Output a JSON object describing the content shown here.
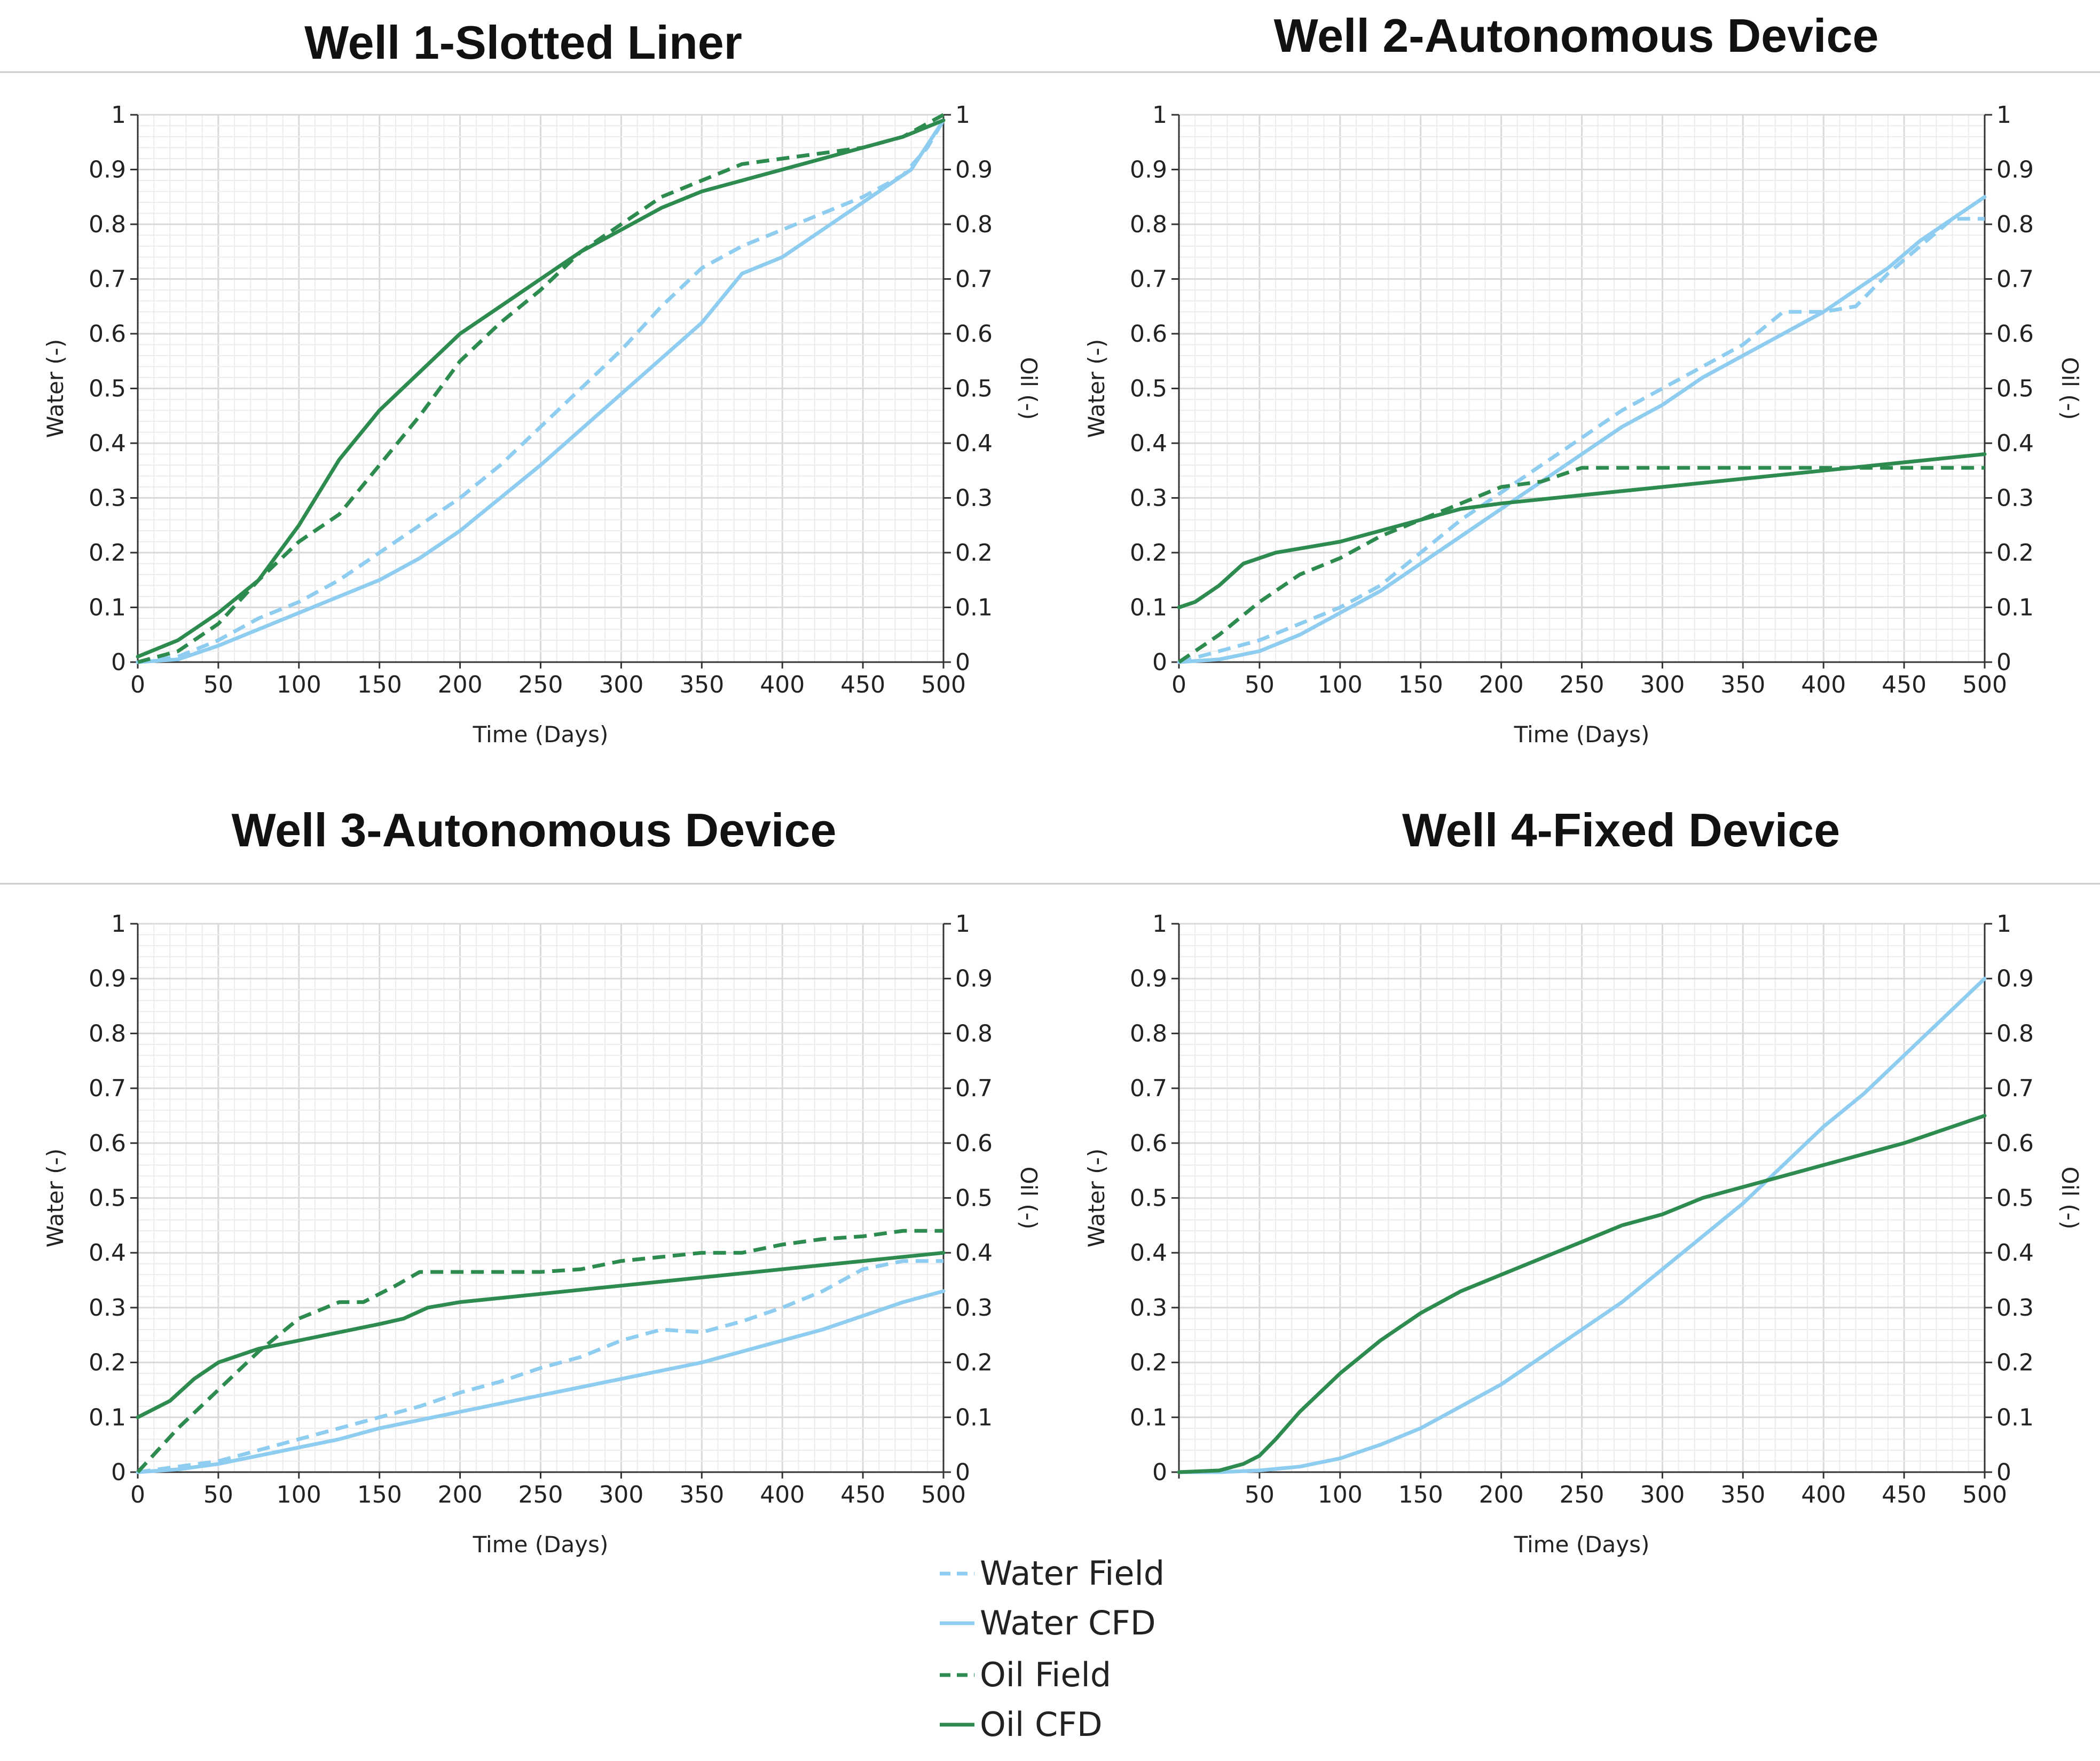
{
  "colors": {
    "water": "#8ecdf0",
    "oil": "#2e8b4f"
  },
  "legend": [
    {
      "label": "Water Field",
      "series": "water",
      "dashed": true
    },
    {
      "label": "Water CFD",
      "series": "water",
      "dashed": false
    },
    {
      "label": "Oil Field",
      "series": "oil",
      "dashed": true
    },
    {
      "label": "Oil CFD",
      "series": "oil",
      "dashed": false
    }
  ],
  "chart_data": [
    {
      "type": "line",
      "title": "Well 1-Slotted Liner",
      "xlabel": "Time (Days)",
      "ylabel_left": "Water (-)",
      "ylabel_right": "Oil (-)",
      "xlim": [
        0,
        500
      ],
      "ylim": [
        0,
        1
      ],
      "xticks": [
        "0",
        "50",
        "100",
        "150",
        "200",
        "250",
        "300",
        "350",
        "400",
        "450",
        "500"
      ],
      "yticks": [
        "0",
        "0.1",
        "0.2",
        "0.3",
        "0.4",
        "0.5",
        "0.6",
        "0.7",
        "0.8",
        "0.9",
        "1"
      ],
      "series": [
        {
          "name": "Water Field",
          "kind": "water",
          "dashed": true,
          "x": [
            0,
            25,
            50,
            75,
            100,
            125,
            150,
            175,
            200,
            225,
            250,
            275,
            300,
            325,
            350,
            375,
            400,
            425,
            450,
            475,
            490,
            500
          ],
          "y": [
            0,
            0.01,
            0.04,
            0.08,
            0.11,
            0.15,
            0.2,
            0.25,
            0.3,
            0.36,
            0.43,
            0.5,
            0.57,
            0.65,
            0.72,
            0.76,
            0.79,
            0.82,
            0.85,
            0.89,
            0.94,
            0.99
          ]
        },
        {
          "name": "Water CFD",
          "kind": "water",
          "dashed": false,
          "x": [
            0,
            25,
            50,
            75,
            100,
            125,
            150,
            175,
            200,
            250,
            300,
            350,
            375,
            400,
            450,
            480,
            500
          ],
          "y": [
            0,
            0.005,
            0.03,
            0.06,
            0.09,
            0.12,
            0.15,
            0.19,
            0.24,
            0.36,
            0.49,
            0.62,
            0.71,
            0.74,
            0.84,
            0.9,
            0.99
          ]
        },
        {
          "name": "Oil Field",
          "kind": "oil",
          "dashed": true,
          "x": [
            0,
            25,
            50,
            75,
            100,
            125,
            150,
            175,
            200,
            225,
            250,
            275,
            300,
            325,
            350,
            375,
            400,
            425,
            450,
            475,
            500
          ],
          "y": [
            0,
            0.02,
            0.07,
            0.15,
            0.22,
            0.27,
            0.36,
            0.45,
            0.55,
            0.62,
            0.68,
            0.75,
            0.8,
            0.85,
            0.88,
            0.91,
            0.92,
            0.93,
            0.94,
            0.96,
            1.0
          ]
        },
        {
          "name": "Oil CFD",
          "kind": "oil",
          "dashed": false,
          "x": [
            0,
            25,
            50,
            75,
            100,
            125,
            150,
            175,
            200,
            225,
            250,
            275,
            300,
            325,
            350,
            375,
            400,
            425,
            450,
            475,
            500
          ],
          "y": [
            0.01,
            0.04,
            0.09,
            0.15,
            0.25,
            0.37,
            0.46,
            0.53,
            0.6,
            0.65,
            0.7,
            0.75,
            0.79,
            0.83,
            0.86,
            0.88,
            0.9,
            0.92,
            0.94,
            0.96,
            0.99
          ]
        }
      ]
    },
    {
      "type": "line",
      "title": "Well 2-Autonomous Device",
      "xlabel": "Time (Days)",
      "ylabel_left": "Water (-)",
      "ylabel_right": "Oil (-)",
      "xlim": [
        0,
        500
      ],
      "ylim": [
        0,
        1
      ],
      "xticks": [
        "0",
        "50",
        "100",
        "150",
        "200",
        "250",
        "300",
        "350",
        "400",
        "450",
        "500"
      ],
      "yticks": [
        "0",
        "0.1",
        "0.2",
        "0.3",
        "0.4",
        "0.5",
        "0.6",
        "0.7",
        "0.8",
        "0.9",
        "1"
      ],
      "series": [
        {
          "name": "Water Field",
          "kind": "water",
          "dashed": true,
          "x": [
            0,
            25,
            50,
            75,
            100,
            125,
            150,
            175,
            200,
            225,
            250,
            275,
            300,
            325,
            350,
            375,
            400,
            420,
            440,
            460,
            480,
            500
          ],
          "y": [
            0,
            0.02,
            0.04,
            0.07,
            0.1,
            0.14,
            0.2,
            0.26,
            0.31,
            0.36,
            0.41,
            0.46,
            0.5,
            0.54,
            0.58,
            0.64,
            0.64,
            0.65,
            0.71,
            0.76,
            0.81,
            0.81
          ]
        },
        {
          "name": "Water CFD",
          "kind": "water",
          "dashed": false,
          "x": [
            0,
            25,
            50,
            75,
            100,
            125,
            150,
            175,
            200,
            225,
            250,
            275,
            300,
            325,
            350,
            375,
            400,
            420,
            440,
            460,
            480,
            500
          ],
          "y": [
            0,
            0.005,
            0.02,
            0.05,
            0.09,
            0.13,
            0.18,
            0.23,
            0.28,
            0.33,
            0.38,
            0.43,
            0.47,
            0.52,
            0.56,
            0.6,
            0.64,
            0.68,
            0.72,
            0.77,
            0.81,
            0.85
          ]
        },
        {
          "name": "Oil Field",
          "kind": "oil",
          "dashed": true,
          "x": [
            0,
            25,
            50,
            75,
            100,
            125,
            150,
            175,
            200,
            225,
            250,
            275,
            300,
            350,
            400,
            450,
            500
          ],
          "y": [
            0,
            0.05,
            0.11,
            0.16,
            0.19,
            0.23,
            0.26,
            0.29,
            0.32,
            0.33,
            0.355,
            0.355,
            0.355,
            0.355,
            0.355,
            0.355,
            0.355
          ]
        },
        {
          "name": "Oil CFD",
          "kind": "oil",
          "dashed": false,
          "x": [
            0,
            10,
            25,
            40,
            60,
            80,
            100,
            125,
            150,
            175,
            200,
            250,
            300,
            350,
            400,
            450,
            500
          ],
          "y": [
            0.1,
            0.11,
            0.14,
            0.18,
            0.2,
            0.21,
            0.22,
            0.24,
            0.26,
            0.28,
            0.29,
            0.305,
            0.32,
            0.335,
            0.35,
            0.365,
            0.38
          ]
        }
      ]
    },
    {
      "type": "line",
      "title": "Well 3-Autonomous Device",
      "xlabel": "Time (Days)",
      "ylabel_left": "Water (-)",
      "ylabel_right": "Oil (-)",
      "xlim": [
        0,
        500
      ],
      "ylim": [
        0,
        1
      ],
      "xticks": [
        "0",
        "50",
        "100",
        "150",
        "200",
        "250",
        "300",
        "350",
        "400",
        "450",
        "500"
      ],
      "yticks": [
        "0",
        "0.1",
        "0.2",
        "0.3",
        "0.4",
        "0.5",
        "0.6",
        "0.7",
        "0.8",
        "0.9",
        "1"
      ],
      "series": [
        {
          "name": "Water Field",
          "kind": "water",
          "dashed": true,
          "x": [
            0,
            25,
            50,
            75,
            100,
            125,
            150,
            175,
            200,
            225,
            250,
            275,
            300,
            325,
            350,
            375,
            400,
            425,
            450,
            475,
            500
          ],
          "y": [
            0,
            0.01,
            0.02,
            0.04,
            0.06,
            0.08,
            0.1,
            0.12,
            0.145,
            0.165,
            0.19,
            0.21,
            0.24,
            0.26,
            0.255,
            0.275,
            0.3,
            0.33,
            0.37,
            0.385,
            0.385
          ]
        },
        {
          "name": "Water CFD",
          "kind": "water",
          "dashed": false,
          "x": [
            0,
            25,
            50,
            75,
            100,
            125,
            150,
            175,
            200,
            225,
            250,
            275,
            300,
            325,
            350,
            375,
            400,
            425,
            450,
            475,
            500
          ],
          "y": [
            0,
            0.005,
            0.015,
            0.03,
            0.045,
            0.06,
            0.08,
            0.095,
            0.11,
            0.125,
            0.14,
            0.155,
            0.17,
            0.185,
            0.2,
            0.22,
            0.24,
            0.26,
            0.285,
            0.31,
            0.33
          ]
        },
        {
          "name": "Oil Field",
          "kind": "oil",
          "dashed": true,
          "x": [
            0,
            25,
            50,
            75,
            100,
            125,
            140,
            160,
            175,
            200,
            250,
            275,
            300,
            350,
            375,
            400,
            425,
            450,
            475,
            500
          ],
          "y": [
            0,
            0.08,
            0.15,
            0.22,
            0.28,
            0.31,
            0.31,
            0.34,
            0.365,
            0.365,
            0.365,
            0.37,
            0.385,
            0.4,
            0.4,
            0.415,
            0.425,
            0.43,
            0.44,
            0.44
          ]
        },
        {
          "name": "Oil CFD",
          "kind": "oil",
          "dashed": false,
          "x": [
            0,
            20,
            35,
            50,
            75,
            100,
            125,
            150,
            165,
            180,
            200,
            250,
            300,
            350,
            400,
            450,
            500
          ],
          "y": [
            0.1,
            0.13,
            0.17,
            0.2,
            0.225,
            0.24,
            0.255,
            0.27,
            0.28,
            0.3,
            0.31,
            0.325,
            0.34,
            0.355,
            0.37,
            0.385,
            0.4
          ]
        }
      ]
    },
    {
      "type": "line",
      "title": "Well 4-Fixed Device",
      "xlabel": "Time (Days)",
      "ylabel_left": "Water (-)",
      "ylabel_right": "Oil (-)",
      "xlim": [
        0,
        500
      ],
      "ylim": [
        0,
        1
      ],
      "xticks": [
        "",
        "50",
        "100",
        "150",
        "200",
        "250",
        "300",
        "350",
        "400",
        "450",
        "500"
      ],
      "yticks": [
        "0",
        "0.1",
        "0.2",
        "0.3",
        "0.4",
        "0.5",
        "0.6",
        "0.7",
        "0.8",
        "0.9",
        "1"
      ],
      "series": [
        {
          "name": "Water CFD",
          "kind": "water",
          "dashed": false,
          "x": [
            0,
            25,
            50,
            75,
            100,
            125,
            150,
            175,
            200,
            225,
            250,
            275,
            300,
            325,
            350,
            375,
            400,
            425,
            450,
            475,
            500
          ],
          "y": [
            0,
            0,
            0.003,
            0.01,
            0.025,
            0.05,
            0.08,
            0.12,
            0.16,
            0.21,
            0.26,
            0.31,
            0.37,
            0.43,
            0.49,
            0.56,
            0.63,
            0.69,
            0.76,
            0.83,
            0.9
          ]
        },
        {
          "name": "Oil CFD",
          "kind": "oil",
          "dashed": false,
          "x": [
            0,
            25,
            40,
            50,
            60,
            75,
            100,
            125,
            150,
            175,
            200,
            225,
            250,
            275,
            300,
            325,
            350,
            400,
            450,
            500
          ],
          "y": [
            0,
            0.003,
            0.015,
            0.03,
            0.06,
            0.11,
            0.18,
            0.24,
            0.29,
            0.33,
            0.36,
            0.39,
            0.42,
            0.45,
            0.47,
            0.5,
            0.52,
            0.56,
            0.6,
            0.65
          ]
        }
      ]
    }
  ]
}
